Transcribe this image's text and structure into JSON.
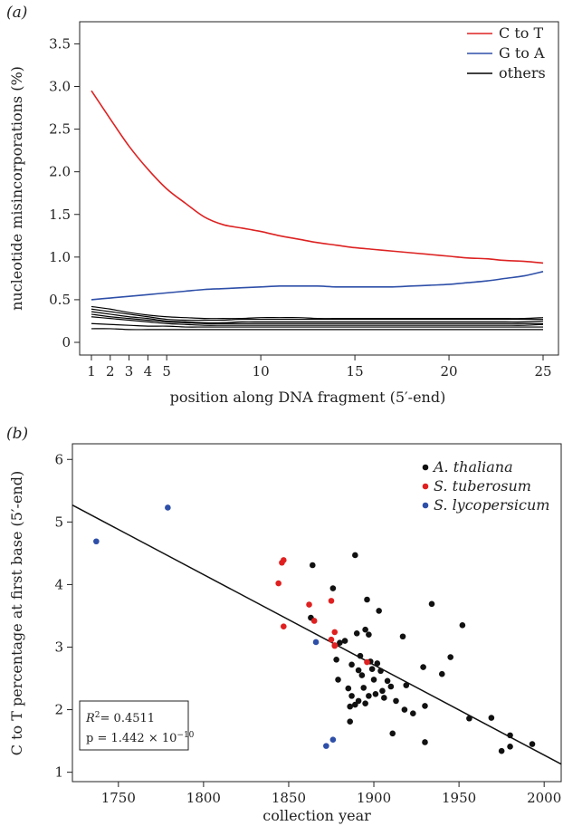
{
  "chart_data": [
    {
      "panel_label": "(a)",
      "type": "line",
      "xlabel": "position along DNA fragment (5′-end)",
      "ylabel": "nucleotide misincorporations (%)",
      "xlim": [
        1,
        25
      ],
      "ylim": [
        0,
        3.6
      ],
      "x_ticks": [
        1,
        2,
        3,
        4,
        5,
        10,
        15,
        20,
        25
      ],
      "y_ticks": [
        0,
        0.5,
        1.0,
        1.5,
        2.0,
        2.5,
        3.0,
        3.5
      ],
      "y_tick_labels": [
        "0",
        "0.5",
        "1.0",
        "1.5",
        "2.0",
        "2.5",
        "3.0",
        "3.5"
      ],
      "legend": {
        "position": "top-right",
        "entries": [
          {
            "label": "C to T",
            "color": "#dd2222"
          },
          {
            "label": "G to A",
            "color": "#2e4fa8"
          },
          {
            "label": "others",
            "color": "#000000"
          }
        ]
      },
      "x": [
        1,
        2,
        3,
        4,
        5,
        6,
        7,
        8,
        9,
        10,
        11,
        12,
        13,
        14,
        15,
        16,
        17,
        18,
        19,
        20,
        21,
        22,
        23,
        24,
        25
      ],
      "series": [
        {
          "name": "C to T",
          "color": "#dd2222",
          "values": [
            2.95,
            2.62,
            2.3,
            2.03,
            1.8,
            1.63,
            1.47,
            1.38,
            1.34,
            1.3,
            1.25,
            1.21,
            1.17,
            1.14,
            1.11,
            1.09,
            1.07,
            1.05,
            1.03,
            1.01,
            0.99,
            0.98,
            0.96,
            0.95,
            0.93
          ]
        },
        {
          "name": "G to A",
          "color": "#2e4fa8",
          "values": [
            0.5,
            0.52,
            0.54,
            0.56,
            0.58,
            0.6,
            0.62,
            0.63,
            0.64,
            0.65,
            0.66,
            0.66,
            0.66,
            0.65,
            0.65,
            0.65,
            0.65,
            0.66,
            0.67,
            0.68,
            0.7,
            0.72,
            0.75,
            0.78,
            0.83
          ]
        },
        {
          "name": "others",
          "color": "#000000",
          "values": [
            0.42,
            0.39,
            0.35,
            0.32,
            0.3,
            0.29,
            0.28,
            0.28,
            0.28,
            0.29,
            0.29,
            0.29,
            0.28,
            0.28,
            0.28,
            0.28,
            0.28,
            0.28,
            0.28,
            0.28,
            0.28,
            0.28,
            0.28,
            0.28,
            0.29
          ]
        },
        {
          "name": "others",
          "color": "#000000",
          "values": [
            0.39,
            0.36,
            0.33,
            0.3,
            0.27,
            0.26,
            0.26,
            0.26,
            0.27,
            0.27,
            0.27,
            0.27,
            0.27,
            0.27,
            0.27,
            0.27,
            0.27,
            0.27,
            0.27,
            0.27,
            0.27,
            0.27,
            0.27,
            0.27,
            0.27
          ]
        },
        {
          "name": "others",
          "color": "#000000",
          "values": [
            0.36,
            0.33,
            0.3,
            0.28,
            0.25,
            0.24,
            0.23,
            0.23,
            0.24,
            0.24,
            0.24,
            0.24,
            0.24,
            0.24,
            0.24,
            0.24,
            0.24,
            0.24,
            0.24,
            0.24,
            0.24,
            0.24,
            0.24,
            0.24,
            0.25
          ]
        },
        {
          "name": "others",
          "color": "#000000",
          "values": [
            0.33,
            0.3,
            0.28,
            0.26,
            0.24,
            0.23,
            0.22,
            0.22,
            0.22,
            0.22,
            0.22,
            0.22,
            0.22,
            0.22,
            0.22,
            0.22,
            0.22,
            0.22,
            0.22,
            0.22,
            0.22,
            0.22,
            0.22,
            0.22,
            0.22
          ]
        },
        {
          "name": "others",
          "color": "#000000",
          "values": [
            0.3,
            0.28,
            0.26,
            0.24,
            0.22,
            0.21,
            0.2,
            0.2,
            0.2,
            0.2,
            0.2,
            0.2,
            0.2,
            0.2,
            0.2,
            0.2,
            0.2,
            0.2,
            0.2,
            0.2,
            0.2,
            0.2,
            0.2,
            0.2,
            0.21
          ]
        },
        {
          "name": "others",
          "color": "#000000",
          "values": [
            0.22,
            0.21,
            0.2,
            0.19,
            0.19,
            0.18,
            0.18,
            0.18,
            0.18,
            0.18,
            0.18,
            0.18,
            0.18,
            0.18,
            0.18,
            0.18,
            0.18,
            0.18,
            0.18,
            0.18,
            0.18,
            0.18,
            0.18,
            0.18,
            0.18
          ]
        },
        {
          "name": "others",
          "color": "#000000",
          "values": [
            0.16,
            0.16,
            0.15,
            0.15,
            0.15,
            0.15,
            0.15,
            0.15,
            0.15,
            0.15,
            0.15,
            0.15,
            0.15,
            0.15,
            0.15,
            0.15,
            0.15,
            0.15,
            0.15,
            0.15,
            0.15,
            0.15,
            0.15,
            0.15,
            0.15
          ]
        }
      ]
    },
    {
      "panel_label": "(b)",
      "type": "scatter",
      "xlabel": "collection year",
      "ylabel": "C to T percentage at first base (5′-end)",
      "xlim": [
        1723,
        2010
      ],
      "ylim": [
        0.85,
        6.25
      ],
      "x_ticks": [
        1750,
        1800,
        1850,
        1900,
        1950,
        2000
      ],
      "y_ticks": [
        1,
        2,
        3,
        4,
        5,
        6
      ],
      "legend": {
        "position": "top-right",
        "entries": [
          {
            "label": "A. thaliana",
            "color": "#111111"
          },
          {
            "label": "S. tuberosum",
            "color": "#e02020"
          },
          {
            "label": "S. lycopersicum",
            "color": "#2e4fa8"
          }
        ]
      },
      "stats": {
        "r2": "= 0.4511",
        "p_value": "p = 1.442 × 10",
        "p_exponent": "−10"
      },
      "regression_line": {
        "x": [
          1723,
          2010
        ],
        "y": [
          5.27,
          1.13
        ]
      },
      "series": [
        {
          "name": "A. thaliana",
          "color": "#111111",
          "points": [
            [
              1864,
              4.31
            ],
            [
              1876,
              3.94
            ],
            [
              1889,
              4.47
            ],
            [
              1896,
              3.76
            ],
            [
              1934,
              3.69
            ],
            [
              1903,
              3.58
            ],
            [
              1952,
              3.35
            ],
            [
              1863,
              3.47
            ],
            [
              1880,
              3.07
            ],
            [
              1883,
              3.1
            ],
            [
              1890,
              3.22
            ],
            [
              1895,
              3.28
            ],
            [
              1897,
              3.2
            ],
            [
              1917,
              3.17
            ],
            [
              1878,
              2.8
            ],
            [
              1887,
              2.72
            ],
            [
              1892,
              2.86
            ],
            [
              1898,
              2.77
            ],
            [
              1902,
              2.74
            ],
            [
              1891,
              2.63
            ],
            [
              1893,
              2.55
            ],
            [
              1899,
              2.65
            ],
            [
              1904,
              2.62
            ],
            [
              1908,
              2.46
            ],
            [
              1894,
              2.35
            ],
            [
              1879,
              2.48
            ],
            [
              1885,
              2.34
            ],
            [
              1900,
              2.48
            ],
            [
              1905,
              2.3
            ],
            [
              1910,
              2.37
            ],
            [
              1901,
              2.25
            ],
            [
              1906,
              2.19
            ],
            [
              1913,
              2.14
            ],
            [
              1887,
              2.22
            ],
            [
              1891,
              2.14
            ],
            [
              1895,
              2.1
            ],
            [
              1897,
              2.22
            ],
            [
              1886,
              2.05
            ],
            [
              1889,
              2.08
            ],
            [
              1886,
              1.81
            ],
            [
              1919,
              2.39
            ],
            [
              1918,
              2.0
            ],
            [
              1923,
              1.94
            ],
            [
              1930,
              2.06
            ],
            [
              1929,
              2.68
            ],
            [
              1940,
              2.57
            ],
            [
              1945,
              2.84
            ],
            [
              1911,
              1.62
            ],
            [
              1930,
              1.48
            ],
            [
              1956,
              1.86
            ],
            [
              1969,
              1.87
            ],
            [
              1980,
              1.59
            ],
            [
              1993,
              1.45
            ],
            [
              1975,
              1.34
            ],
            [
              1980,
              1.41
            ]
          ]
        },
        {
          "name": "S. tuberosum",
          "color": "#e02020",
          "points": [
            [
              1846,
              4.35
            ],
            [
              1847,
              4.39
            ],
            [
              1844,
              4.02
            ],
            [
              1862,
              3.68
            ],
            [
              1875,
              3.74
            ],
            [
              1865,
              3.42
            ],
            [
              1847,
              3.33
            ],
            [
              1875,
              3.12
            ],
            [
              1877,
              3.24
            ],
            [
              1877,
              3.03
            ],
            [
              1877,
              3.02
            ],
            [
              1896,
              2.76
            ]
          ]
        },
        {
          "name": "S. lycopersicum",
          "color": "#2e4fa8",
          "points": [
            [
              1737,
              4.69
            ],
            [
              1779,
              5.23
            ],
            [
              1866,
              3.08
            ],
            [
              1876,
              1.52
            ],
            [
              1872,
              1.42
            ]
          ]
        }
      ]
    }
  ]
}
